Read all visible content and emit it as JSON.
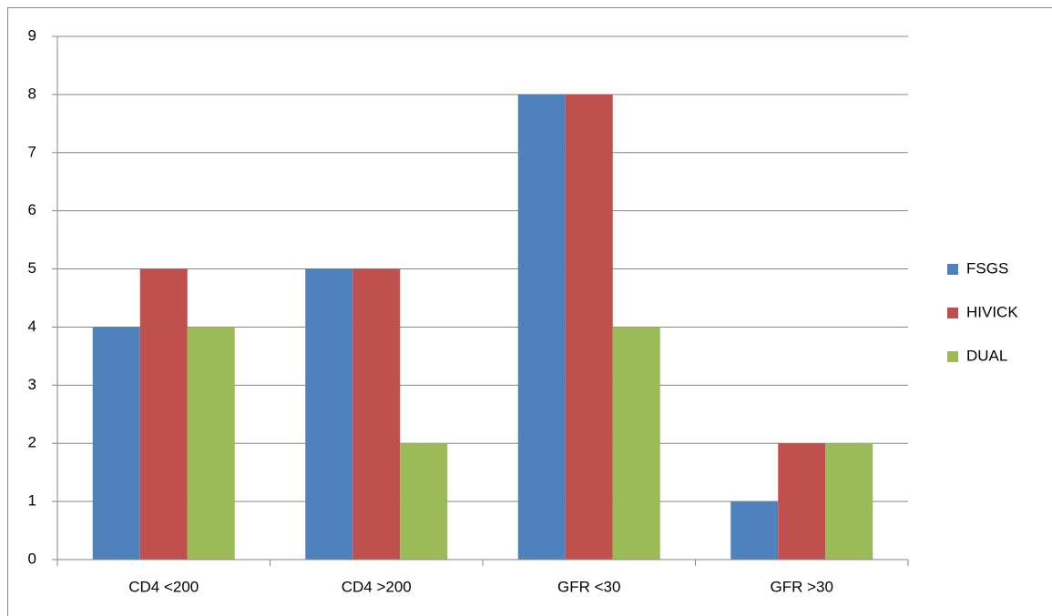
{
  "chart_data": {
    "type": "bar",
    "categories": [
      "CD4 <200",
      "CD4 >200",
      "GFR <30",
      "GFR >30"
    ],
    "series": [
      {
        "name": "FSGS",
        "color": "#4f81bd",
        "values": [
          4,
          5,
          8,
          1
        ]
      },
      {
        "name": "HIVICK",
        "color": "#c0504d",
        "values": [
          5,
          5,
          8,
          2
        ]
      },
      {
        "name": "DUAL",
        "color": "#9bbb59",
        "values": [
          4,
          2,
          4,
          2
        ]
      }
    ],
    "ylim": [
      0,
      9
    ],
    "yticks": [
      0,
      1,
      2,
      3,
      4,
      5,
      6,
      7,
      8,
      9
    ],
    "grid": true,
    "legend": "right"
  }
}
